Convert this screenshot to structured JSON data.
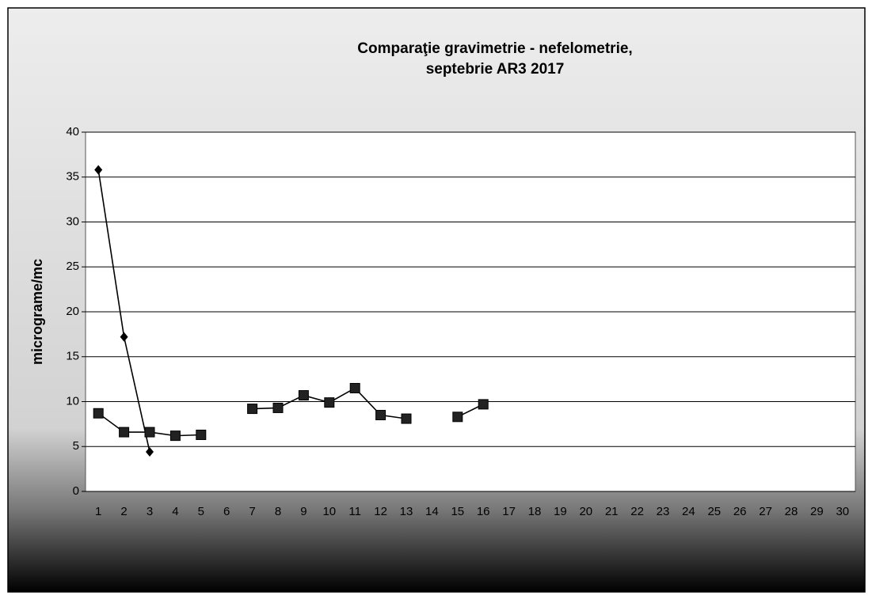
{
  "chart_data": {
    "type": "line",
    "title": [
      "Comparaţie gravimetrie - nefelometrie,",
      "septebrie AR3 2017"
    ],
    "y_label": "micrograme/mc",
    "categories": [
      "1",
      "2",
      "3",
      "4",
      "5",
      "6",
      "7",
      "8",
      "9",
      "10",
      "11",
      "12",
      "13",
      "14",
      "15",
      "16",
      "17",
      "18",
      "19",
      "20",
      "21",
      "22",
      "23",
      "24",
      "25",
      "26",
      "27",
      "28",
      "29",
      "30"
    ],
    "series": [
      {
        "color": "#000000",
        "marker": "diamond",
        "values": [
          35.8,
          17.2,
          4.4,
          null,
          null,
          null,
          null,
          null,
          null,
          null,
          null,
          null,
          null,
          null,
          null,
          null,
          null,
          null,
          null,
          null,
          null,
          null,
          null,
          null,
          null,
          null,
          null,
          null,
          null,
          null
        ]
      },
      {
        "color": "#000000",
        "marker": "square",
        "values": [
          8.7,
          6.6,
          6.6,
          6.2,
          6.3,
          null,
          9.2,
          9.3,
          10.7,
          9.9,
          11.5,
          8.5,
          8.1,
          null,
          8.3,
          9.7,
          null,
          null,
          null,
          null,
          null,
          null,
          null,
          null,
          null,
          null,
          null,
          null,
          null,
          null
        ]
      }
    ],
    "ylim": [
      0,
      40
    ],
    "yticks": [
      0,
      5,
      10,
      15,
      20,
      25,
      30,
      35,
      40
    ],
    "grid": true
  }
}
